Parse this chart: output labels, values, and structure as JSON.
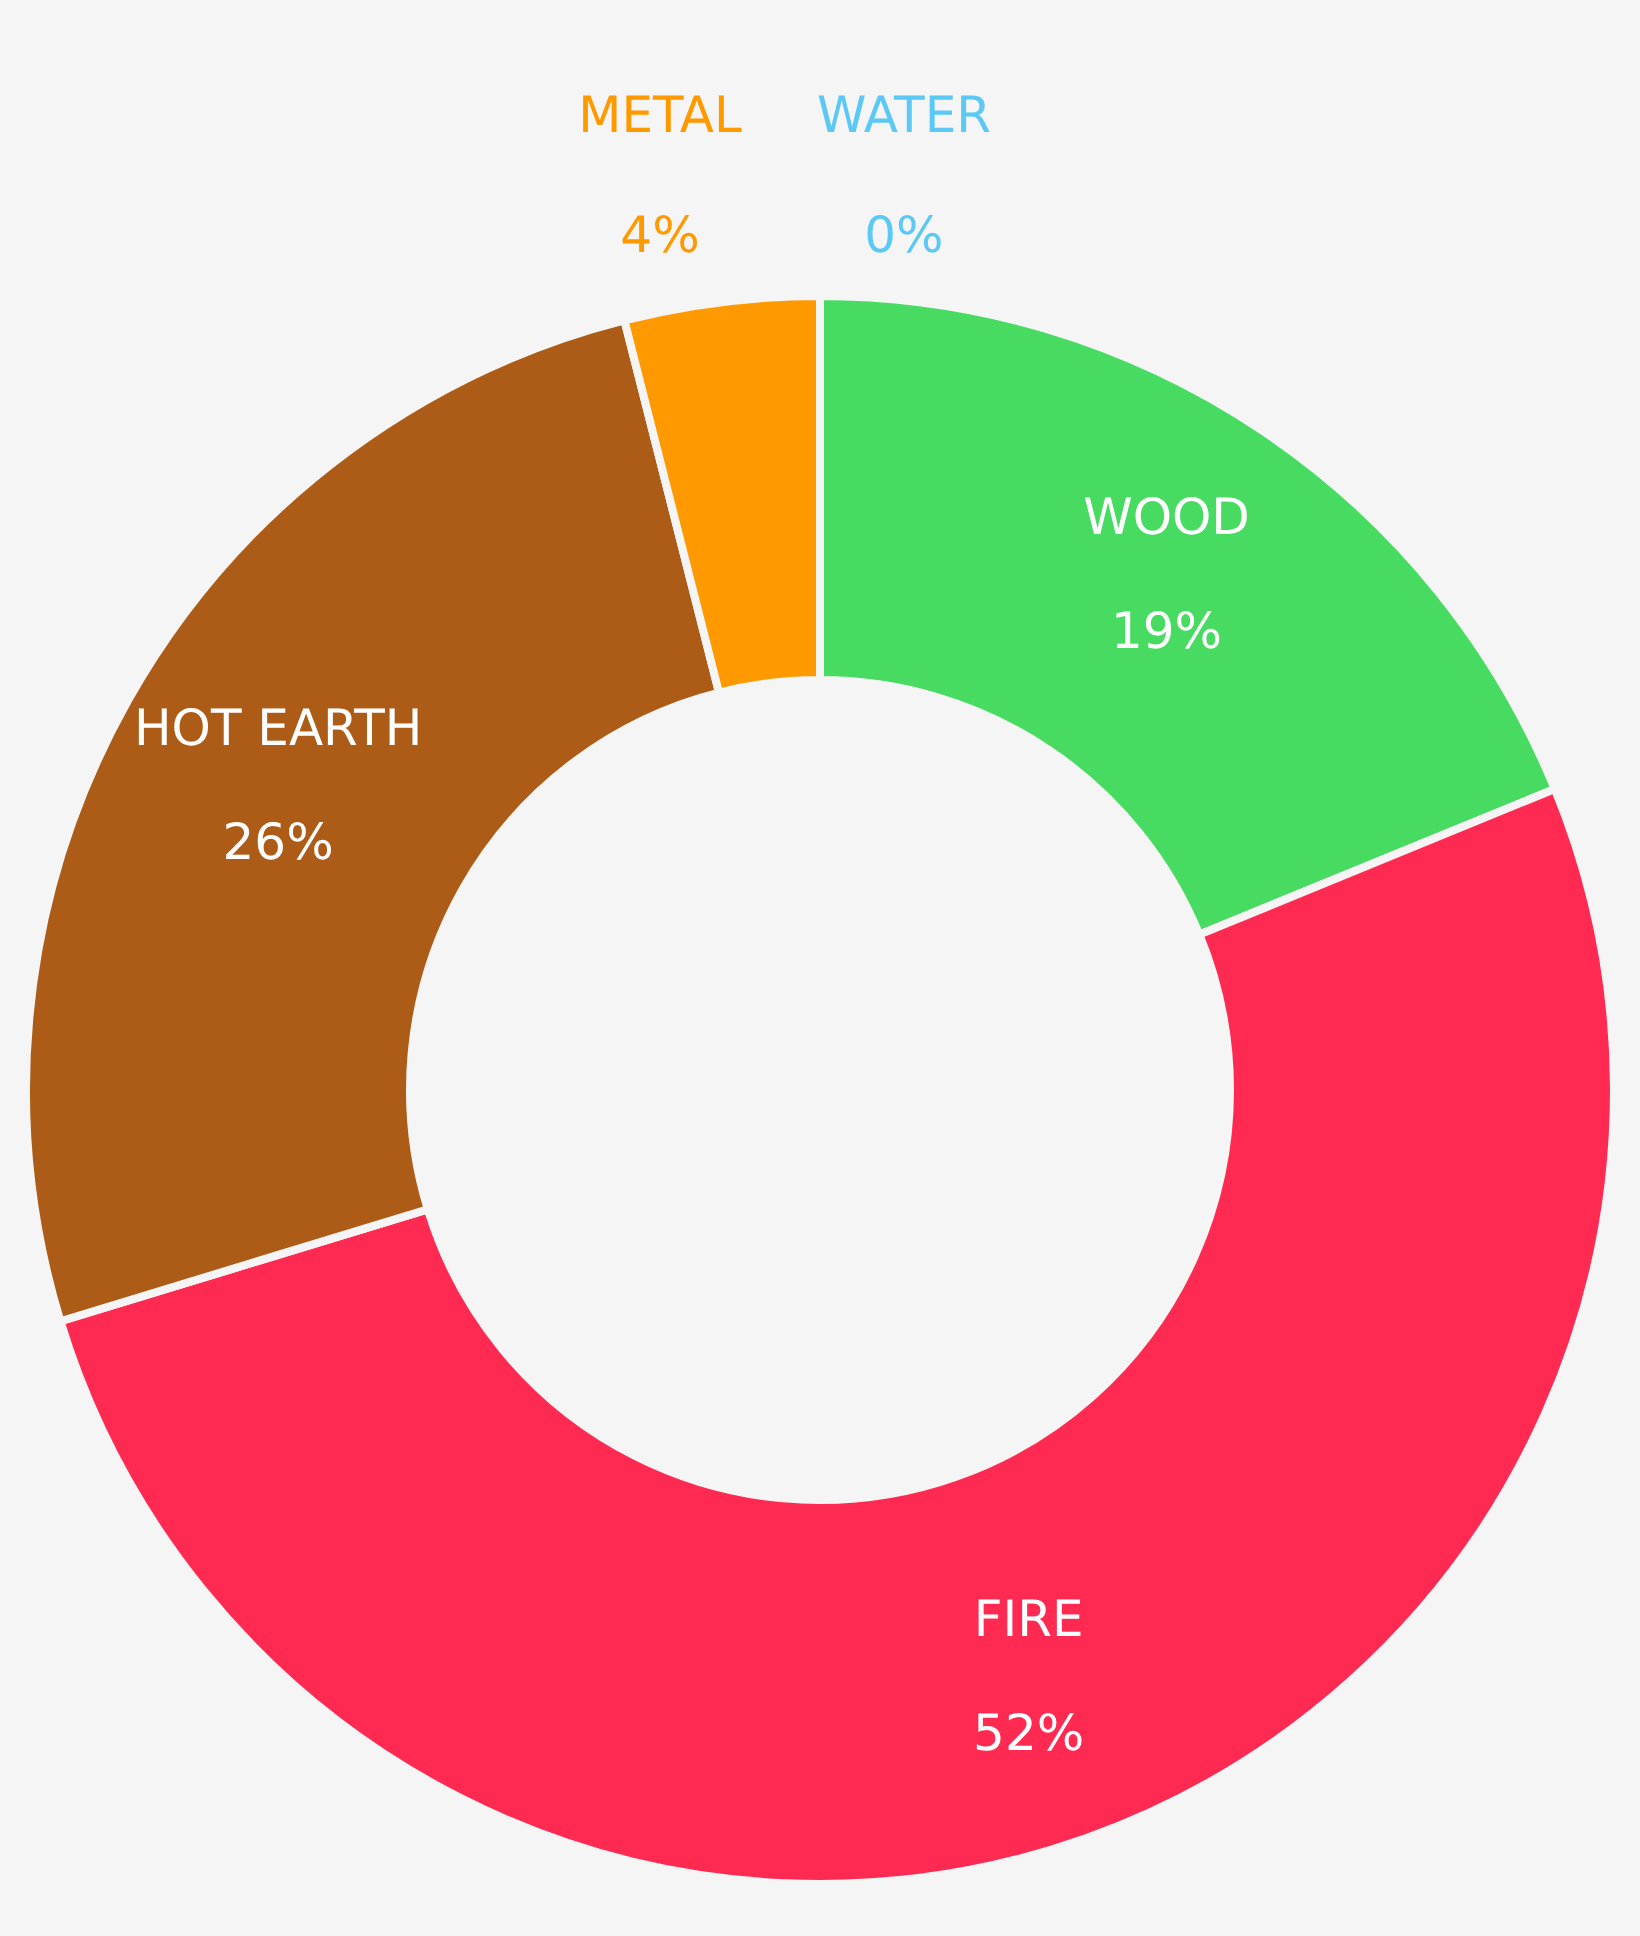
{
  "chart_data": {
    "type": "donut",
    "categories": [
      "WOOD",
      "FIRE",
      "HOT EARTH",
      "METAL",
      "WATER"
    ],
    "values": [
      19,
      52,
      26,
      4,
      0
    ],
    "colors": [
      "#47db62",
      "#ff2a52",
      "#ad5c18",
      "#ff9900",
      "#5bc8f5"
    ],
    "value_labels": [
      "19%",
      "52%",
      "26%",
      "4%",
      "0%"
    ],
    "legend": false
  }
}
